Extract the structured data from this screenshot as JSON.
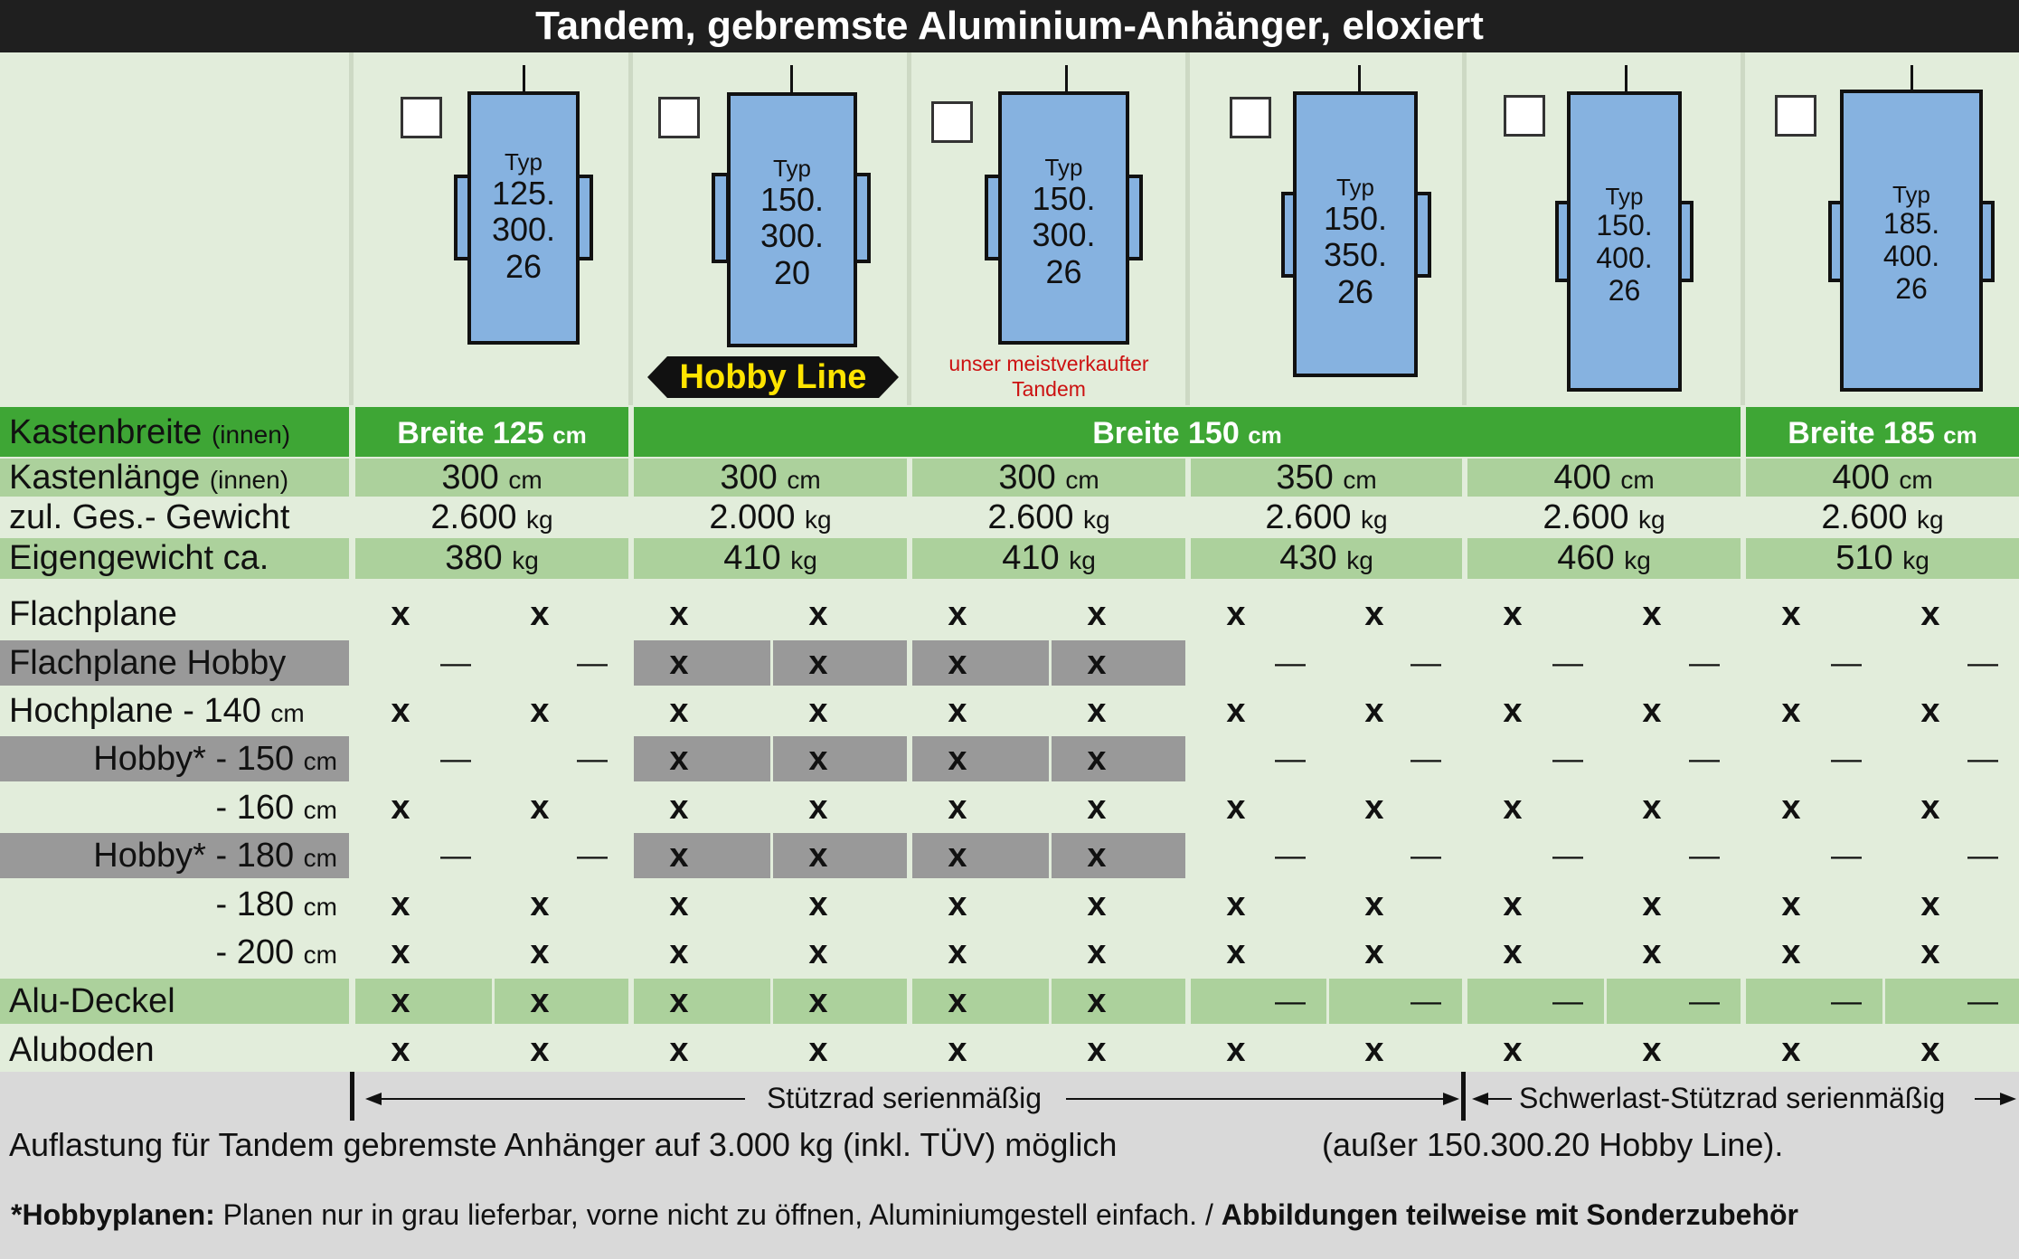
{
  "title": "Tandem, gebremste Aluminium-Anhänger, eloxiert",
  "trailers": [
    {
      "typ": "Typ",
      "l1": "125.",
      "l2": "300.",
      "l3": "26"
    },
    {
      "typ": "Typ",
      "l1": "150.",
      "l2": "300.",
      "l3": "20"
    },
    {
      "typ": "Typ",
      "l1": "150.",
      "l2": "300.",
      "l3": "26"
    },
    {
      "typ": "Typ",
      "l1": "150.",
      "l2": "350.",
      "l3": "26"
    },
    {
      "typ": "Typ",
      "l1": "150.",
      "l2": "400.",
      "l3": "26"
    },
    {
      "typ": "Typ",
      "l1": "185.",
      "l2": "400.",
      "l3": "26"
    }
  ],
  "hobby_badge": "Hobby Line",
  "bestseller_note_1": "unser meistverkaufter",
  "bestseller_note_2": "Tandem",
  "spec_labels": {
    "kastenbreite": "Kastenbreite",
    "kastenbreite_sub": "(innen)",
    "kastenlaenge": "Kastenlänge",
    "kastenlaenge_sub": "(innen)",
    "gesamtgewicht": "zul. Ges.- Gewicht",
    "eigengewicht": "Eigengewicht ca."
  },
  "breite": [
    {
      "value": "Breite 125",
      "unit": "cm"
    },
    {
      "value": "Breite 150",
      "unit": "cm"
    },
    {
      "value": "Breite 185",
      "unit": "cm"
    }
  ],
  "laenge": [
    {
      "v": "300",
      "u": "cm"
    },
    {
      "v": "300",
      "u": "cm"
    },
    {
      "v": "300",
      "u": "cm"
    },
    {
      "v": "350",
      "u": "cm"
    },
    {
      "v": "400",
      "u": "cm"
    },
    {
      "v": "400",
      "u": "cm"
    }
  ],
  "gesamt": [
    {
      "v": "2.600",
      "u": "kg"
    },
    {
      "v": "2.000",
      "u": "kg"
    },
    {
      "v": "2.600",
      "u": "kg"
    },
    {
      "v": "2.600",
      "u": "kg"
    },
    {
      "v": "2.600",
      "u": "kg"
    },
    {
      "v": "2.600",
      "u": "kg"
    }
  ],
  "eigen": [
    {
      "v": "380",
      "u": "kg"
    },
    {
      "v": "410",
      "u": "kg"
    },
    {
      "v": "410",
      "u": "kg"
    },
    {
      "v": "430",
      "u": "kg"
    },
    {
      "v": "460",
      "u": "kg"
    },
    {
      "v": "510",
      "u": "kg"
    }
  ],
  "options": [
    {
      "label": "Flachplane",
      "unit": "",
      "marks": [
        "x",
        "x",
        "x",
        "x",
        "x",
        "x",
        "x",
        "x",
        "x",
        "x",
        "x",
        "x"
      ]
    },
    {
      "label": "Flachplane Hobby",
      "unit": "",
      "marks": [
        "—",
        "—",
        "x",
        "x",
        "x",
        "x",
        "—",
        "—",
        "—",
        "—",
        "—",
        "—"
      ]
    },
    {
      "label": "Hochplane  - 140",
      "unit": "cm",
      "marks": [
        "x",
        "x",
        "x",
        "x",
        "x",
        "x",
        "x",
        "x",
        "x",
        "x",
        "x",
        "x"
      ]
    },
    {
      "label": "Hobby* - 150",
      "unit": "cm",
      "marks": [
        "—",
        "—",
        "x",
        "x",
        "x",
        "x",
        "—",
        "—",
        "—",
        "—",
        "—",
        "—"
      ]
    },
    {
      "label": "- 160",
      "unit": "cm",
      "marks": [
        "x",
        "x",
        "x",
        "x",
        "x",
        "x",
        "x",
        "x",
        "x",
        "x",
        "x",
        "x"
      ]
    },
    {
      "label": "Hobby* - 180",
      "unit": "cm",
      "marks": [
        "—",
        "—",
        "x",
        "x",
        "x",
        "x",
        "—",
        "—",
        "—",
        "—",
        "—",
        "—"
      ]
    },
    {
      "label": "- 180",
      "unit": "cm",
      "marks": [
        "x",
        "x",
        "x",
        "x",
        "x",
        "x",
        "x",
        "x",
        "x",
        "x",
        "x",
        "x"
      ]
    },
    {
      "label": "- 200",
      "unit": "cm",
      "marks": [
        "x",
        "x",
        "x",
        "x",
        "x",
        "x",
        "x",
        "x",
        "x",
        "x",
        "x",
        "x"
      ]
    },
    {
      "label": "Alu-Deckel",
      "unit": "",
      "marks": [
        "x",
        "x",
        "x",
        "x",
        "x",
        "x",
        "—",
        "—",
        "—",
        "—",
        "—",
        "—"
      ]
    },
    {
      "label": "Aluboden",
      "unit": "",
      "marks": [
        "x",
        "x",
        "x",
        "x",
        "x",
        "x",
        "x",
        "x",
        "x",
        "x",
        "x",
        "x"
      ]
    }
  ],
  "stuetzrad": "Stützrad serienmäßig",
  "schwerlast": "Schwerlast-Stützrad serienmäßig",
  "auflastung": "Auflastung für Tandem gebremste Anhänger auf 3.000 kg (inkl. TÜV) möglich",
  "auflastung_note": "(außer 150.300.20 Hobby Line).",
  "footnote_bold": "*Hobbyplanen:",
  "footnote_text": " Planen nur in grau lieferbar, vorne nicht zu öffnen, Aluminiumgestell einfach. / ",
  "footnote_bold2": "Abbildungen teilweise mit Sonderzubehör",
  "colors": {
    "header_bg": "#1f1f1f",
    "green": "#3ea635",
    "light_green": "#acd19c",
    "grey": "#999999",
    "trailer_blue": "#86b2e0",
    "badge_yellow": "#ffe400",
    "note_red": "#cc1111"
  }
}
